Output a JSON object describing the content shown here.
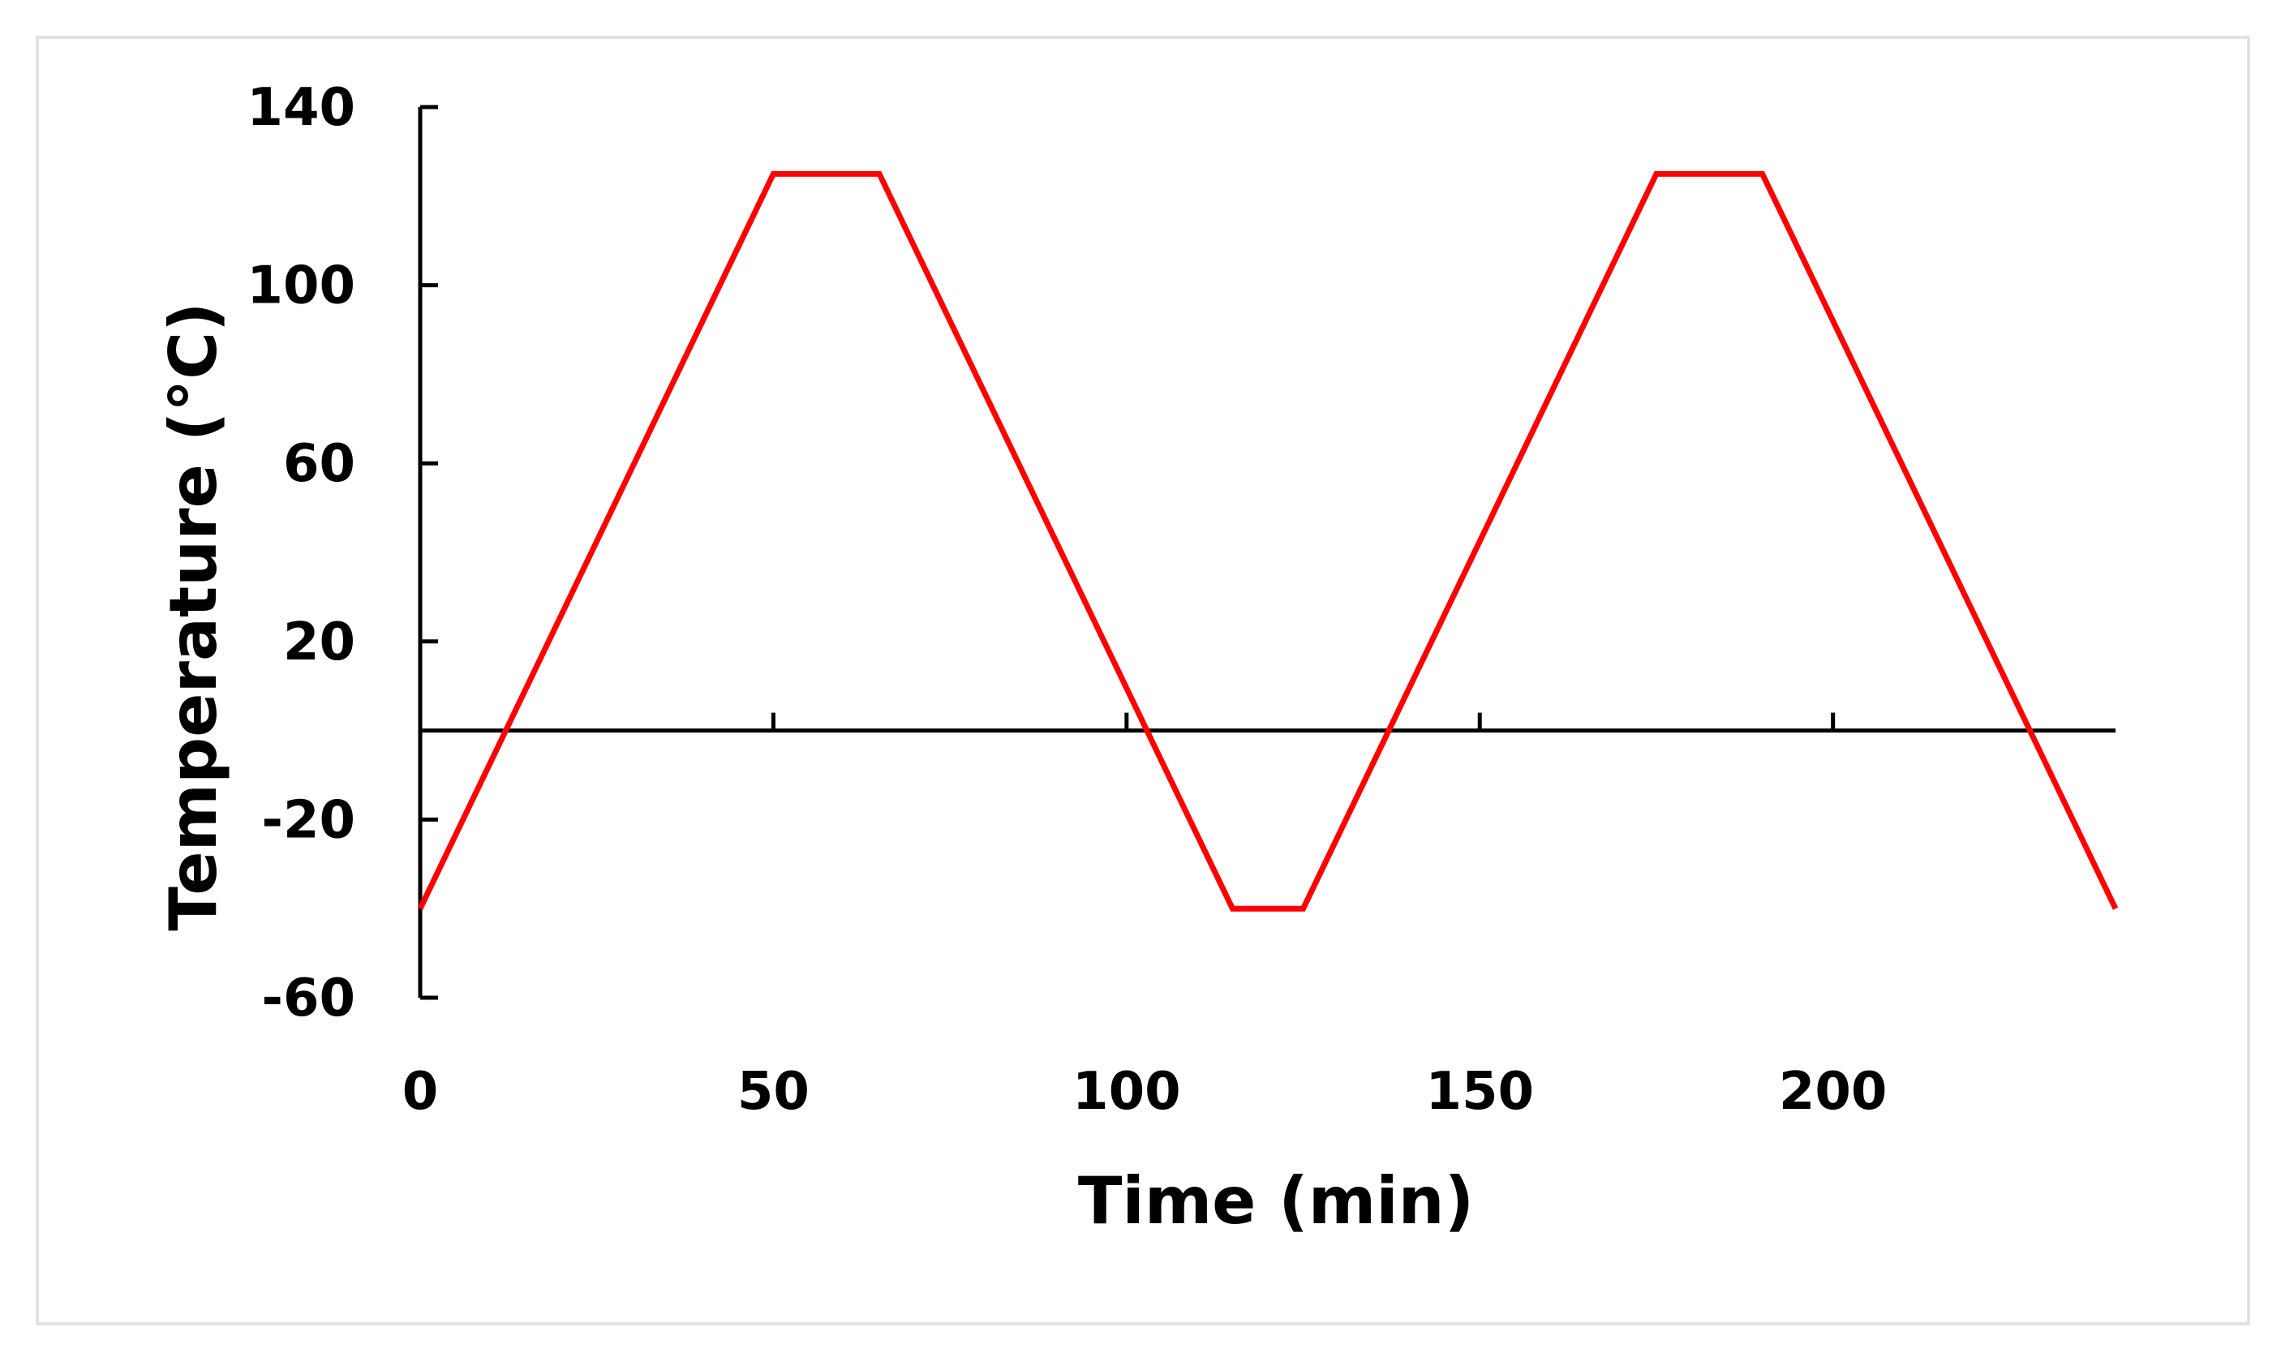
{
  "chart_data": {
    "type": "line",
    "title": "",
    "xlabel": "Time (min)",
    "ylabel": "Temperature (°C)",
    "xlim": [
      0,
      240
    ],
    "ylim": [
      -60,
      140
    ],
    "xticks": [
      0,
      50,
      100,
      150,
      200
    ],
    "yticks": [
      140,
      100,
      60,
      20,
      -20,
      -60
    ],
    "grid": false,
    "legend": "none",
    "x_axis_crosses_y_at": 0,
    "series": [
      {
        "color": "#ff0000",
        "x": [
          0,
          50,
          65,
          115,
          125,
          175,
          190,
          240
        ],
        "y": [
          -40,
          125,
          125,
          -40,
          -40,
          125,
          125,
          -40
        ]
      }
    ]
  }
}
